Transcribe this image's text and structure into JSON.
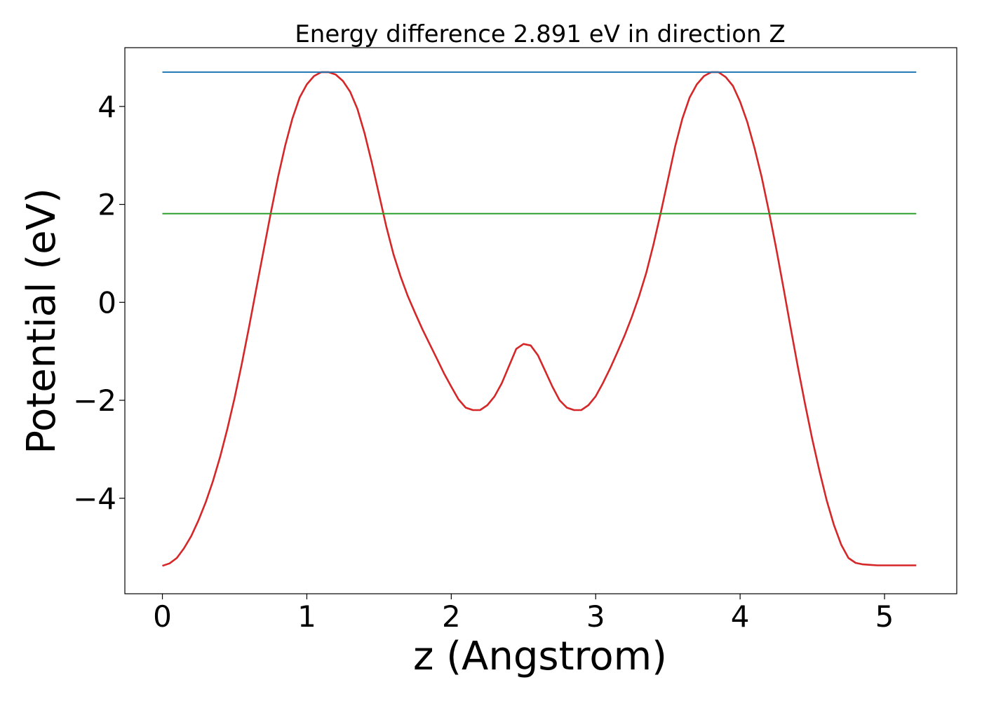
{
  "chart_data": {
    "type": "line",
    "title": "Energy difference 2.891 eV in direction Z",
    "xlabel": "z (Angstrom)",
    "ylabel": "Potential (eV)",
    "xlim": [
      -0.26,
      5.5
    ],
    "ylim": [
      -5.95,
      5.2
    ],
    "xticks": [
      0,
      1,
      2,
      3,
      4,
      5
    ],
    "xtick_labels": [
      "0",
      "1",
      "2",
      "3",
      "4",
      "5"
    ],
    "yticks": [
      -4,
      -2,
      0,
      2,
      4
    ],
    "ytick_labels": [
      "−4",
      "−2",
      "0",
      "2",
      "4"
    ],
    "grid": false,
    "legend": "none",
    "series": [
      {
        "color": "#d62728",
        "x": [
          0.0,
          0.05,
          0.1,
          0.15,
          0.2,
          0.25,
          0.3,
          0.35,
          0.4,
          0.45,
          0.5,
          0.55,
          0.6,
          0.65,
          0.7,
          0.75,
          0.8,
          0.85,
          0.9,
          0.95,
          1.0,
          1.05,
          1.1,
          1.15,
          1.2,
          1.25,
          1.3,
          1.35,
          1.4,
          1.45,
          1.5,
          1.55,
          1.6,
          1.65,
          1.7,
          1.75,
          1.8,
          1.85,
          1.9,
          1.95,
          2.0,
          2.05,
          2.1,
          2.15,
          2.2,
          2.25,
          2.3,
          2.35,
          2.4,
          2.45,
          2.5,
          2.55,
          2.6,
          2.65,
          2.7,
          2.75,
          2.8,
          2.85,
          2.9,
          2.95,
          3.0,
          3.05,
          3.1,
          3.15,
          3.2,
          3.25,
          3.3,
          3.35,
          3.4,
          3.45,
          3.5,
          3.55,
          3.6,
          3.65,
          3.7,
          3.75,
          3.8,
          3.85,
          3.9,
          3.95,
          4.0,
          4.05,
          4.1,
          4.15,
          4.2,
          4.25,
          4.3,
          4.35,
          4.4,
          4.45,
          4.5,
          4.55,
          4.6,
          4.65,
          4.7,
          4.75,
          4.8,
          4.85,
          4.9,
          4.95,
          5.0,
          5.05,
          5.1,
          5.15,
          5.22
        ],
        "y": [
          -5.38,
          -5.33,
          -5.22,
          -5.02,
          -4.77,
          -4.45,
          -4.08,
          -3.65,
          -3.15,
          -2.58,
          -1.95,
          -1.25,
          -0.5,
          0.28,
          1.05,
          1.82,
          2.55,
          3.2,
          3.75,
          4.18,
          4.45,
          4.62,
          4.7,
          4.7,
          4.65,
          4.52,
          4.3,
          3.95,
          3.45,
          2.85,
          2.2,
          1.55,
          0.98,
          0.52,
          0.12,
          -0.22,
          -0.55,
          -0.85,
          -1.15,
          -1.45,
          -1.72,
          -1.98,
          -2.15,
          -2.2,
          -2.2,
          -2.1,
          -1.92,
          -1.65,
          -1.3,
          -0.95,
          -0.85,
          -0.88,
          -1.08,
          -1.4,
          -1.72,
          -2.0,
          -2.15,
          -2.2,
          -2.2,
          -2.1,
          -1.92,
          -1.65,
          -1.35,
          -1.02,
          -0.68,
          -0.3,
          0.12,
          0.6,
          1.18,
          1.82,
          2.5,
          3.18,
          3.75,
          4.18,
          4.45,
          4.62,
          4.7,
          4.7,
          4.6,
          4.42,
          4.1,
          3.68,
          3.15,
          2.55,
          1.85,
          1.1,
          0.3,
          -0.52,
          -1.32,
          -2.08,
          -2.8,
          -3.45,
          -4.05,
          -4.55,
          -4.95,
          -5.22,
          -5.32,
          -5.35,
          -5.36,
          -5.37,
          -5.37,
          -5.37,
          -5.37,
          -5.37,
          -5.37
        ]
      },
      {
        "color": "#1f77b4",
        "x": [
          0.0,
          5.22
        ],
        "y": [
          4.7,
          4.7
        ]
      },
      {
        "color": "#2ca02c",
        "x": [
          0.0,
          5.22
        ],
        "y": [
          1.81,
          1.81
        ]
      }
    ]
  }
}
